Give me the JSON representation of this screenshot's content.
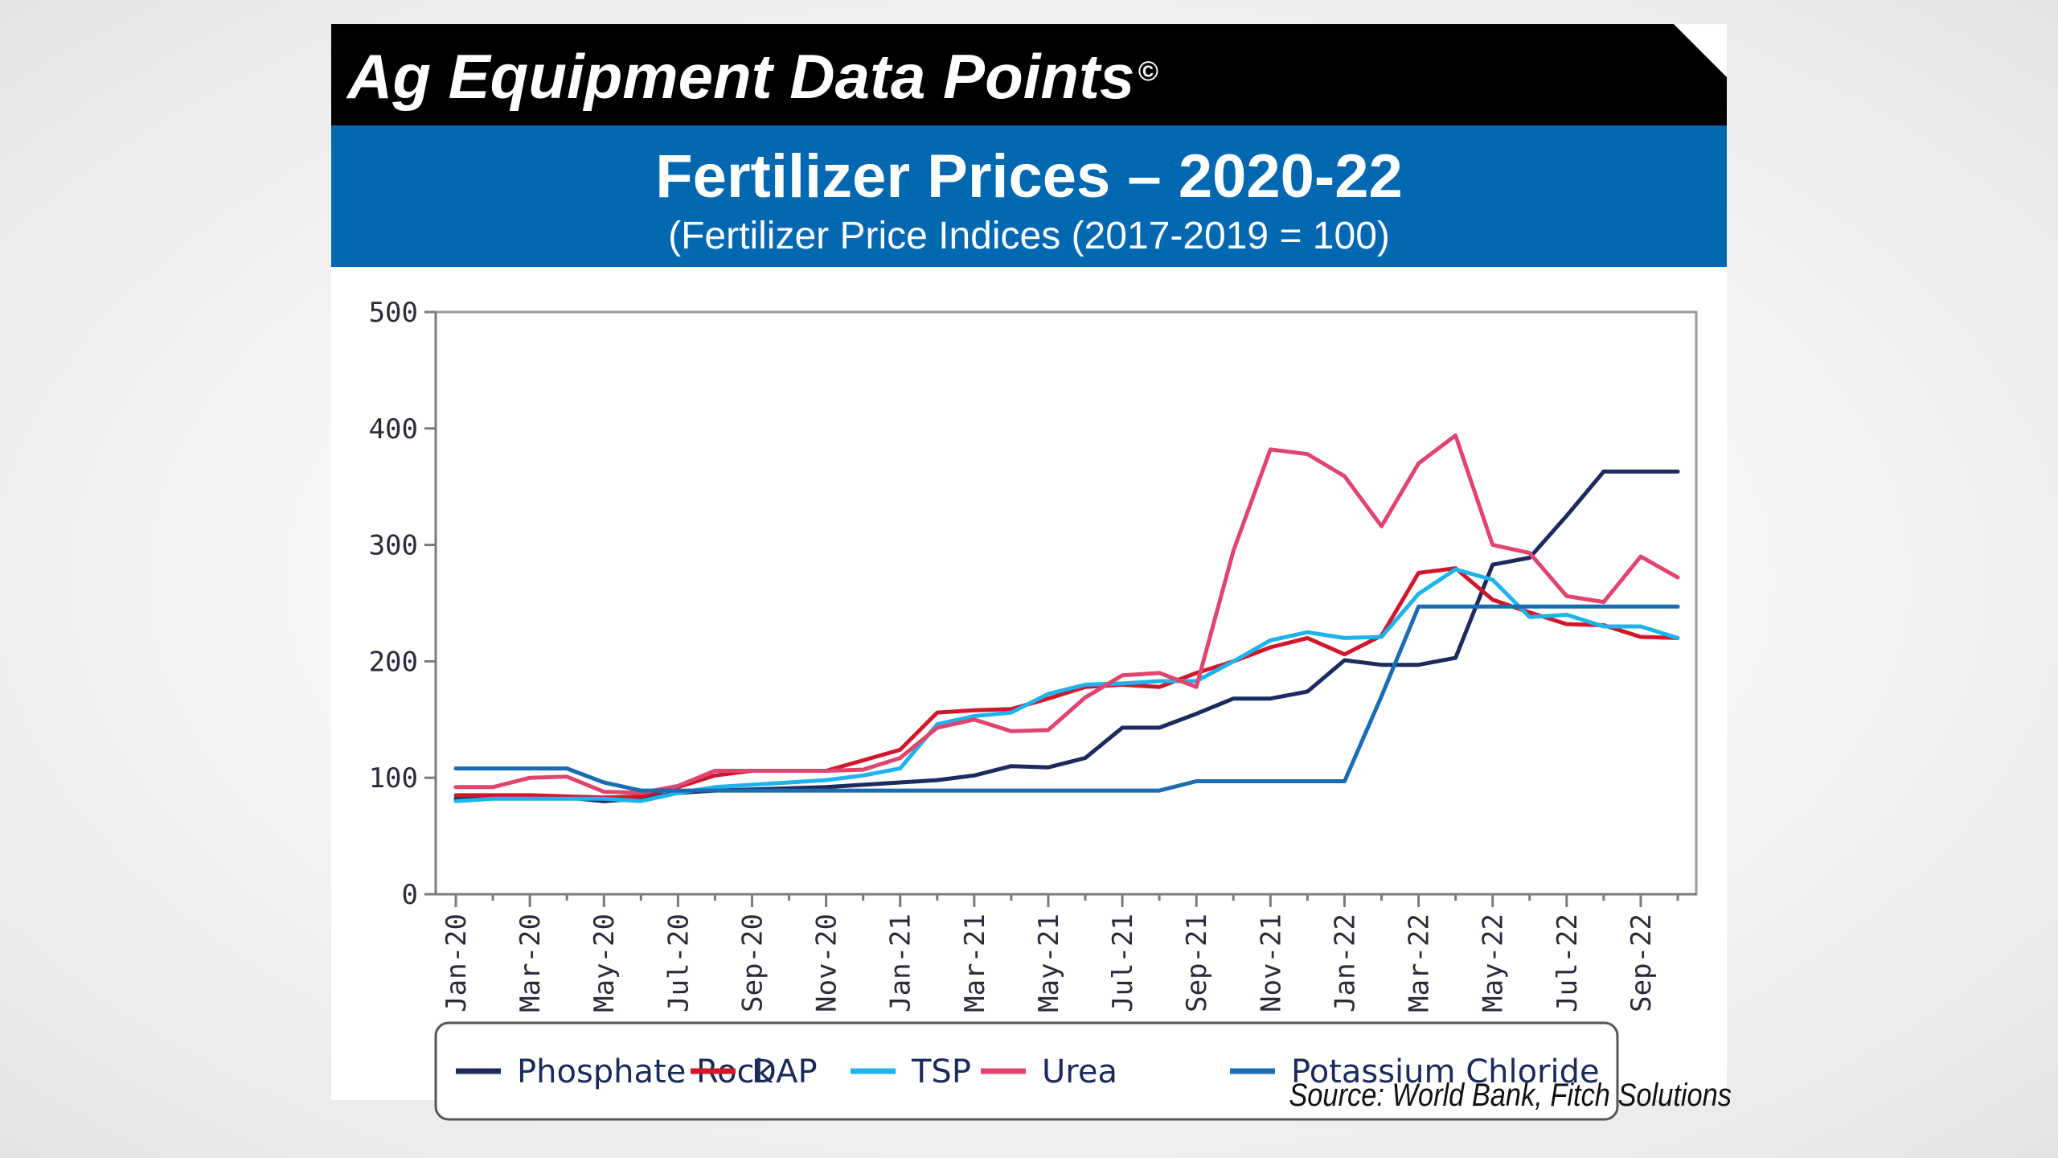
{
  "header": {
    "brand": "Ag Equipment Data Points",
    "copyright_mark": "©",
    "title": "Fertilizer Prices – 2020-22",
    "subtitle": "(Fertilizer Price Indices (2017-2019 = 100)"
  },
  "source": "Source: World Bank, Fitch Solutions",
  "chart_data": {
    "type": "line",
    "x": [
      "Jan-20",
      "Feb-20",
      "Mar-20",
      "Apr-20",
      "May-20",
      "Jun-20",
      "Jul-20",
      "Aug-20",
      "Sep-20",
      "Oct-20",
      "Nov-20",
      "Dec-20",
      "Jan-21",
      "Feb-21",
      "Mar-21",
      "Apr-21",
      "May-21",
      "Jun-21",
      "Jul-21",
      "Aug-21",
      "Sep-21",
      "Oct-21",
      "Nov-21",
      "Dec-21",
      "Jan-22",
      "Feb-22",
      "Mar-22",
      "Apr-22",
      "May-22",
      "Jun-22",
      "Jul-22",
      "Aug-22",
      "Sep-22",
      "Oct-22"
    ],
    "x_tick_labels": [
      "Jan-20",
      "Mar-20",
      "May-20",
      "Jul-20",
      "Sep-20",
      "Nov-20",
      "Jan-21",
      "Mar-21",
      "May-21",
      "Jul-21",
      "Sep-21",
      "Nov-21",
      "Jan-22",
      "Mar-22",
      "May-22",
      "Jul-22",
      "Sep-22"
    ],
    "y_ticks": [
      "0",
      "100",
      "200",
      "300",
      "400",
      "500"
    ],
    "ylim": [
      0,
      500
    ],
    "grid": false,
    "legend_position": "bottom",
    "series": [
      {
        "name": "Phosphate Rock",
        "color": "#1c2a5e",
        "values": [
          82,
          83,
          83,
          83,
          80,
          82,
          87,
          89,
          90,
          91,
          92,
          94,
          96,
          98,
          102,
          110,
          109,
          117,
          143,
          143,
          155,
          168,
          168,
          174,
          201,
          197,
          197,
          203,
          283,
          289,
          325,
          363,
          363,
          363
        ]
      },
      {
        "name": "DAP",
        "color": "#d0172b",
        "values": [
          85,
          85,
          85,
          84,
          83,
          84,
          92,
          102,
          106,
          106,
          106,
          115,
          124,
          156,
          158,
          159,
          168,
          178,
          180,
          178,
          190,
          200,
          212,
          220,
          206,
          222,
          276,
          280,
          253,
          242,
          232,
          231,
          221,
          220
        ]
      },
      {
        "name": "TSP",
        "color": "#1eb3ea",
        "values": [
          80,
          82,
          82,
          82,
          82,
          80,
          87,
          92,
          94,
          96,
          98,
          102,
          108,
          146,
          153,
          156,
          172,
          180,
          181,
          183,
          183,
          200,
          218,
          225,
          220,
          221,
          258,
          279,
          270,
          238,
          240,
          230,
          230,
          220
        ]
      },
      {
        "name": "Urea",
        "color": "#e0456f",
        "values": [
          92,
          92,
          100,
          101,
          88,
          87,
          93,
          106,
          106,
          106,
          106,
          107,
          117,
          143,
          150,
          140,
          141,
          169,
          188,
          190,
          178,
          295,
          382,
          378,
          359,
          316,
          370,
          394,
          300,
          293,
          256,
          251,
          290,
          272
        ]
      },
      {
        "name": "Potassium Chloride",
        "color": "#1b6cb0",
        "values": [
          108,
          108,
          108,
          108,
          96,
          89,
          89,
          89,
          89,
          89,
          89,
          89,
          89,
          89,
          89,
          89,
          89,
          89,
          89,
          89,
          97,
          97,
          97,
          97,
          97,
          170,
          247,
          247,
          247,
          247,
          247,
          247,
          247,
          247
        ]
      }
    ]
  }
}
